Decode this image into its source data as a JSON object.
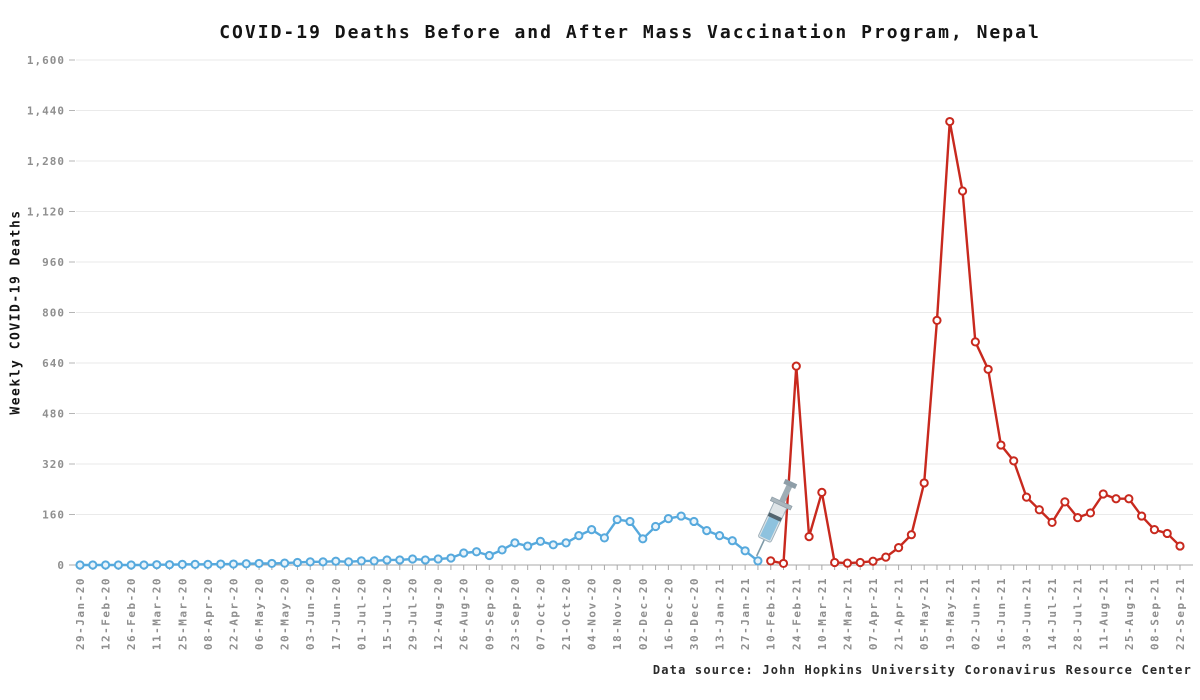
{
  "chart_data": {
    "type": "line",
    "title": "COVID-19 Deaths Before and After Mass Vaccination Program, Nepal",
    "ylabel": "Weekly COVID-19 Deaths",
    "source_caption": "Data source: John Hopkins University Coronavirus Resource Center",
    "ylim": [
      0,
      1600
    ],
    "ytick_step": 160,
    "ytick_labels": [
      "0",
      "160",
      "320",
      "480",
      "640",
      "800",
      "960",
      "1,120",
      "1,280",
      "1,440",
      "1,600"
    ],
    "x_label_every": 2,
    "grid": "horizontal",
    "legend": "none",
    "series": [
      {
        "name": "before_vaccination",
        "color": "#56a9dd",
        "marker_fill": "#e9f4fb",
        "dates": [
          "29-Jan-20",
          "05-Feb-20",
          "12-Feb-20",
          "19-Feb-20",
          "26-Feb-20",
          "04-Mar-20",
          "11-Mar-20",
          "18-Mar-20",
          "25-Mar-20",
          "01-Apr-20",
          "08-Apr-20",
          "15-Apr-20",
          "22-Apr-20",
          "29-Apr-20",
          "06-May-20",
          "13-May-20",
          "20-May-20",
          "27-May-20",
          "03-Jun-20",
          "10-Jun-20",
          "17-Jun-20",
          "24-Jun-20",
          "01-Jul-20",
          "08-Jul-20",
          "15-Jul-20",
          "22-Jul-20",
          "29-Jul-20",
          "05-Aug-20",
          "12-Aug-20",
          "19-Aug-20",
          "26-Aug-20",
          "02-Sep-20",
          "09-Sep-20",
          "16-Sep-20",
          "23-Sep-20",
          "30-Sep-20",
          "07-Oct-20",
          "14-Oct-20",
          "21-Oct-20",
          "28-Oct-20",
          "04-Nov-20",
          "11-Nov-20",
          "18-Nov-20",
          "25-Nov-20",
          "02-Dec-20",
          "09-Dec-20",
          "16-Dec-20",
          "23-Dec-20",
          "30-Dec-20",
          "06-Jan-21",
          "13-Jan-21",
          "20-Jan-21",
          "27-Jan-21",
          "03-Feb-21"
        ],
        "values": [
          0,
          0,
          0,
          0,
          0,
          0,
          1,
          1,
          2,
          2,
          2,
          3,
          3,
          4,
          5,
          5,
          6,
          8,
          10,
          10,
          12,
          10,
          13,
          13,
          16,
          16,
          19,
          16,
          19,
          22,
          38,
          42,
          30,
          48,
          70,
          60,
          75,
          64,
          70,
          93,
          112,
          86,
          144,
          138,
          83,
          122,
          147,
          155,
          138,
          109,
          93,
          77,
          45,
          13
        ]
      },
      {
        "name": "after_vaccination",
        "color": "#c8291e",
        "marker_fill": "#ffffff",
        "dates": [
          "10-Feb-21",
          "17-Feb-21",
          "24-Feb-21",
          "03-Mar-21",
          "10-Mar-21",
          "17-Mar-21",
          "24-Mar-21",
          "31-Mar-21",
          "07-Apr-21",
          "14-Apr-21",
          "21-Apr-21",
          "28-Apr-21",
          "05-May-21",
          "12-May-21",
          "19-May-21",
          "26-May-21",
          "02-Jun-21",
          "09-Jun-21",
          "16-Jun-21",
          "23-Jun-21",
          "30-Jun-21",
          "07-Jul-21",
          "14-Jul-21",
          "21-Jul-21",
          "28-Jul-21",
          "04-Aug-21",
          "11-Aug-21",
          "18-Aug-21",
          "25-Aug-21",
          "01-Sep-21",
          "08-Sep-21",
          "15-Sep-21",
          "22-Sep-21"
        ],
        "values": [
          13,
          5,
          630,
          90,
          230,
          8,
          6,
          8,
          12,
          25,
          55,
          96,
          260,
          775,
          1405,
          1185,
          707,
          620,
          380,
          330,
          215,
          175,
          135,
          200,
          150,
          165,
          225,
          210,
          210,
          155,
          112,
          100,
          60
        ]
      }
    ],
    "annotation": {
      "icon": "syringe-icon",
      "target_date": "10-Feb-21"
    }
  }
}
